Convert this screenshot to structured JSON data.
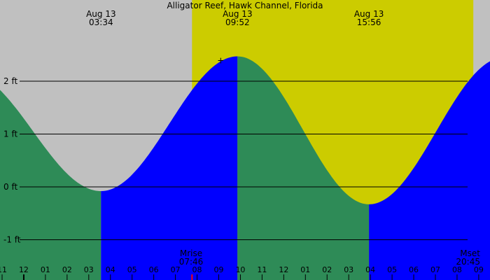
{
  "chart_data": {
    "type": "area",
    "title": "Alligator Reef, Hawk Channel, Florida",
    "y_unit": "ft",
    "ylim": [
      -1.4,
      3.1
    ],
    "y_ticks": [
      {
        "value": 2,
        "label": "2 ft"
      },
      {
        "value": 1,
        "label": "1 ft"
      },
      {
        "value": 0,
        "label": "0 ft"
      },
      {
        "value": -1,
        "label": "-1 ft"
      }
    ],
    "hour_ticks": [
      "11",
      "12",
      "01",
      "02",
      "03",
      "04",
      "05",
      "06",
      "07",
      "08",
      "09",
      "10",
      "11",
      "12",
      "01",
      "02",
      "03",
      "04",
      "05",
      "06",
      "07",
      "08",
      "09"
    ],
    "daylight": {
      "start": "07:46",
      "end": "20:45"
    },
    "extremes": [
      {
        "type": "low",
        "date": "Aug 13",
        "time": "03:34",
        "height": -0.08
      },
      {
        "type": "high",
        "date": "Aug 13",
        "time": "09:52",
        "height": 2.47
      },
      {
        "type": "low",
        "date": "Aug 13",
        "time": "15:56",
        "height": -0.33
      }
    ],
    "series": [
      {
        "values": [
          2.18,
          -0.08,
          2.47,
          -0.33,
          2.45
        ],
        "times": [
          "21:18",
          "03:34",
          "09:52",
          "15:56",
          "22:10"
        ]
      }
    ],
    "sun": {
      "rise_label": "Mrise",
      "rise_time": "07:46",
      "set_label": "Mset",
      "set_time": "20:45"
    },
    "colors": {
      "background": "#c0c0c0",
      "daylight": "#cccc00",
      "falling": "#2e8b57",
      "rising": "#0000ff",
      "grid": "#000000"
    }
  }
}
